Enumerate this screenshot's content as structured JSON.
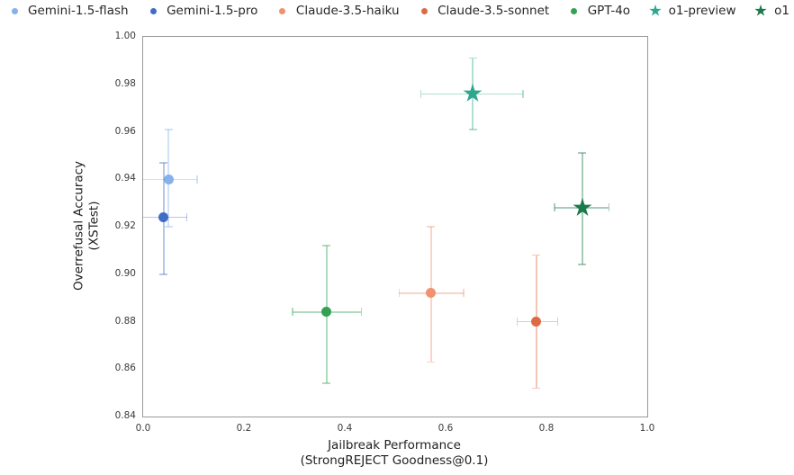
{
  "figure": {
    "background": "#ffffff",
    "spine_color": "#9a9a9a"
  },
  "legend": {
    "position": "top",
    "items": [
      {
        "label": "Gemini-1.5-flash",
        "marker": "circle",
        "color": "#85B1EC"
      },
      {
        "label": "Gemini-1.5-pro",
        "marker": "circle",
        "color": "#3F6DC5"
      },
      {
        "label": "Claude-3.5-haiku",
        "marker": "circle",
        "color": "#F0916F"
      },
      {
        "label": "Claude-3.5-sonnet",
        "marker": "circle",
        "color": "#DC6B45"
      },
      {
        "label": "GPT-4o",
        "marker": "circle",
        "color": "#33A152"
      },
      {
        "label": "o1-preview",
        "marker": "star",
        "color": "#2EA78C"
      },
      {
        "label": "o1",
        "marker": "star",
        "color": "#1C7A4A"
      }
    ]
  },
  "chart_data": {
    "type": "scatter",
    "title": "",
    "xlabel": "Jailbreak Performance",
    "xlabel_line2": "(StrongREJECT Goodness@0.1)",
    "ylabel": "Overrefusal Accuracy",
    "ylabel_line2": "(XSTest)",
    "xlim": [
      0.0,
      1.0
    ],
    "ylim": [
      0.84,
      1.0
    ],
    "x_ticks": [
      0.0,
      0.2,
      0.4,
      0.6,
      0.8,
      1.0
    ],
    "y_ticks": [
      1.0,
      0.98,
      0.96,
      0.94,
      0.92,
      0.9,
      0.88,
      0.86,
      0.84
    ],
    "grid": false,
    "legend_position": "top outside",
    "series": [
      {
        "name": "Gemini-1.5-flash",
        "marker": "circle",
        "color": "#85B1EC",
        "x": 0.05,
        "y": 0.94,
        "x_err": [
          -0.007,
          0.107
        ],
        "y_err": [
          0.92,
          0.961
        ]
      },
      {
        "name": "Gemini-1.5-pro",
        "marker": "circle",
        "color": "#3F6DC5",
        "x": 0.041,
        "y": 0.924,
        "x_err": [
          -0.005,
          0.087
        ],
        "y_err": [
          0.9,
          0.947
        ]
      },
      {
        "name": "Claude-3.5-haiku",
        "marker": "circle",
        "color": "#F0916F",
        "x": 0.571,
        "y": 0.892,
        "x_err": [
          0.508,
          0.636
        ],
        "y_err": [
          0.863,
          0.92
        ]
      },
      {
        "name": "Claude-3.5-sonnet",
        "marker": "circle",
        "color": "#DC6B45",
        "x": 0.78,
        "y": 0.88,
        "x_err": [
          0.742,
          0.822
        ],
        "y_err": [
          0.852,
          0.908
        ]
      },
      {
        "name": "GPT-4o",
        "marker": "circle",
        "color": "#33A152",
        "x": 0.364,
        "y": 0.884,
        "x_err": [
          0.296,
          0.433
        ],
        "y_err": [
          0.854,
          0.912
        ]
      },
      {
        "name": "o1-preview",
        "marker": "star",
        "color": "#2EA78C",
        "x": 0.654,
        "y": 0.976,
        "x_err": [
          0.551,
          0.754
        ],
        "y_err": [
          0.961,
          0.991
        ]
      },
      {
        "name": "o1",
        "marker": "star",
        "color": "#1C7A4A",
        "x": 0.871,
        "y": 0.928,
        "x_err": [
          0.816,
          0.924
        ],
        "y_err": [
          0.904,
          0.951
        ]
      }
    ]
  }
}
